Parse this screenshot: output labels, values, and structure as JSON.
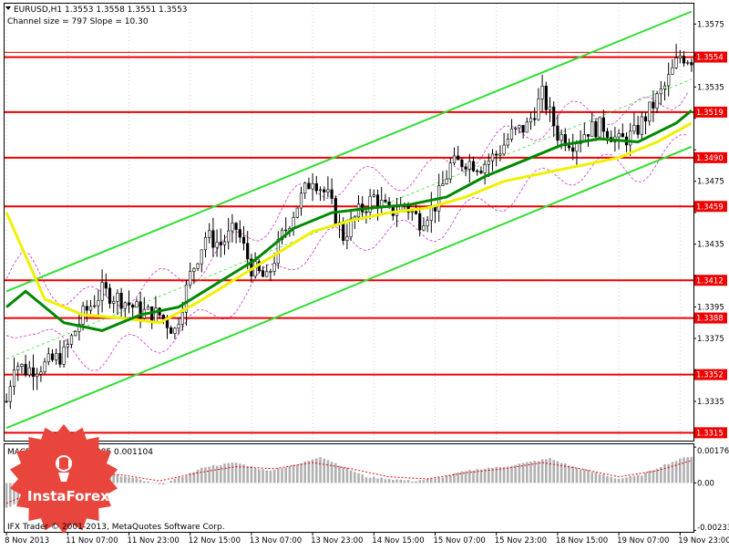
{
  "chart_data": {
    "type": "candlestick",
    "title": "EURUSD,H1  1.3553 1.3558 1.3551 1.3553",
    "subtitle": "Channel size = 797 Slope = 10.30",
    "ylim": [
      1.331,
      1.3588
    ],
    "y_ticks": [
      "1.3575",
      "1.3555",
      "1.3535",
      "1.3515",
      "1.3495",
      "1.3475",
      "1.3455",
      "1.3435",
      "1.3415",
      "1.3395",
      "1.3375",
      "1.3355",
      "1.3335"
    ],
    "y_tick_values": [
      1.3575,
      1.3555,
      1.3535,
      1.3515,
      1.3495,
      1.3475,
      1.3455,
      1.3435,
      1.3415,
      1.3395,
      1.3375,
      1.3355,
      1.3335
    ],
    "x_ticks": [
      "8 Nov 2013",
      "11 Nov 07:00",
      "11 Nov 23:00",
      "12 Nov 15:00",
      "13 Nov 07:00",
      "13 Nov 23:00",
      "14 Nov 15:00",
      "15 Nov 07:00",
      "15 Nov 23:00",
      "18 Nov 15:00",
      "19 Nov 07:00",
      "19 Nov 23:00"
    ],
    "x_tick_bars": [
      0,
      16,
      32,
      48,
      64,
      80,
      96,
      112,
      128,
      144,
      160,
      176
    ],
    "levels": [
      {
        "label": "1.3554",
        "value": 1.3554
      },
      {
        "label": "1.3519",
        "value": 1.3519
      },
      {
        "label": "1.3490",
        "value": 1.349
      },
      {
        "label": "1.3459",
        "value": 1.3459
      },
      {
        "label": "1.3412",
        "value": 1.3412
      },
      {
        "label": "1.3388",
        "value": 1.3388
      },
      {
        "label": "1.3352",
        "value": 1.3352
      },
      {
        "label": "1.3315",
        "value": 1.3315
      }
    ],
    "close_path": [
      [
        0,
        1.3335
      ],
      [
        2,
        1.336
      ],
      [
        5,
        1.3355
      ],
      [
        10,
        1.3358
      ],
      [
        15,
        1.3365
      ],
      [
        20,
        1.339
      ],
      [
        25,
        1.3405
      ],
      [
        30,
        1.34
      ],
      [
        35,
        1.3392
      ],
      [
        40,
        1.339
      ],
      [
        44,
        1.338
      ],
      [
        48,
        1.3415
      ],
      [
        52,
        1.344
      ],
      [
        56,
        1.3435
      ],
      [
        60,
        1.3445
      ],
      [
        64,
        1.342
      ],
      [
        68,
        1.3412
      ],
      [
        72,
        1.344
      ],
      [
        76,
        1.346
      ],
      [
        80,
        1.3478
      ],
      [
        84,
        1.3465
      ],
      [
        88,
        1.344
      ],
      [
        92,
        1.3455
      ],
      [
        96,
        1.3465
      ],
      [
        100,
        1.3455
      ],
      [
        104,
        1.346
      ],
      [
        108,
        1.345
      ],
      [
        112,
        1.346
      ],
      [
        116,
        1.3485
      ],
      [
        120,
        1.3488
      ],
      [
        124,
        1.3485
      ],
      [
        128,
        1.3492
      ],
      [
        132,
        1.3505
      ],
      [
        136,
        1.351
      ],
      [
        140,
        1.353
      ],
      [
        144,
        1.3505
      ],
      [
        148,
        1.35
      ],
      [
        152,
        1.3508
      ],
      [
        156,
        1.351
      ],
      [
        160,
        1.35
      ],
      [
        164,
        1.3505
      ],
      [
        168,
        1.352
      ],
      [
        172,
        1.3535
      ],
      [
        176,
        1.3555
      ],
      [
        179,
        1.3553
      ]
    ],
    "ma_green_path": [
      [
        0,
        1.3395
      ],
      [
        5,
        1.3405
      ],
      [
        15,
        1.3385
      ],
      [
        25,
        1.338
      ],
      [
        35,
        1.339
      ],
      [
        45,
        1.3395
      ],
      [
        55,
        1.341
      ],
      [
        65,
        1.3425
      ],
      [
        75,
        1.3445
      ],
      [
        85,
        1.3455
      ],
      [
        95,
        1.3458
      ],
      [
        105,
        1.346
      ],
      [
        115,
        1.3465
      ],
      [
        125,
        1.3478
      ],
      [
        135,
        1.3488
      ],
      [
        145,
        1.3498
      ],
      [
        155,
        1.3502
      ],
      [
        165,
        1.35
      ],
      [
        175,
        1.3512
      ],
      [
        179,
        1.352
      ]
    ],
    "ma_yellow_path": [
      [
        0,
        1.3455
      ],
      [
        10,
        1.34
      ],
      [
        20,
        1.339
      ],
      [
        30,
        1.3388
      ],
      [
        40,
        1.3385
      ],
      [
        50,
        1.3398
      ],
      [
        60,
        1.3413
      ],
      [
        70,
        1.3428
      ],
      [
        80,
        1.3443
      ],
      [
        90,
        1.345
      ],
      [
        100,
        1.3455
      ],
      [
        110,
        1.3458
      ],
      [
        120,
        1.3465
      ],
      [
        130,
        1.3475
      ],
      [
        140,
        1.348
      ],
      [
        150,
        1.3485
      ],
      [
        160,
        1.349
      ],
      [
        170,
        1.35
      ],
      [
        179,
        1.3512
      ]
    ],
    "channel_upper": [
      [
        0,
        1.3405
      ],
      [
        179,
        1.3583
      ]
    ],
    "channel_middle": [
      [
        0,
        1.3362
      ],
      [
        179,
        1.354
      ]
    ],
    "channel_lower": [
      [
        0,
        1.3318
      ],
      [
        179,
        1.3497
      ]
    ],
    "macd": {
      "label": "MACD(12,26,9) 0.001285 0.001104",
      "y_ticks": [
        "0.00176",
        "0.00",
        "-0.00233"
      ],
      "y_tick_values": [
        0.00176,
        0.0,
        -0.00233
      ],
      "ylim": [
        -0.0024,
        0.0019
      ],
      "hist_path": [
        [
          0,
          -0.0012
        ],
        [
          6,
          -0.0008
        ],
        [
          12,
          0.0004
        ],
        [
          20,
          0.0007
        ],
        [
          28,
          0.0004
        ],
        [
          34,
          0.0002
        ],
        [
          40,
          -0.0001
        ],
        [
          46,
          0.0003
        ],
        [
          52,
          0.0008
        ],
        [
          60,
          0.001
        ],
        [
          68,
          0.0006
        ],
        [
          76,
          0.0009
        ],
        [
          82,
          0.0013
        ],
        [
          88,
          0.0008
        ],
        [
          94,
          0.0003
        ],
        [
          100,
          0.0002
        ],
        [
          106,
          0.0001
        ],
        [
          112,
          0.0002
        ],
        [
          118,
          0.0005
        ],
        [
          124,
          0.0007
        ],
        [
          130,
          0.0008
        ],
        [
          136,
          0.001
        ],
        [
          142,
          0.0012
        ],
        [
          148,
          0.0008
        ],
        [
          154,
          0.0005
        ],
        [
          160,
          0.0002
        ],
        [
          166,
          0.0004
        ],
        [
          172,
          0.0009
        ],
        [
          178,
          0.0013
        ]
      ],
      "signal_path": [
        [
          0,
          -0.001
        ],
        [
          10,
          -0.0002
        ],
        [
          20,
          0.0005
        ],
        [
          30,
          0.0004
        ],
        [
          40,
          0.0001
        ],
        [
          50,
          0.0005
        ],
        [
          60,
          0.0008
        ],
        [
          70,
          0.0007
        ],
        [
          80,
          0.001
        ],
        [
          90,
          0.0007
        ],
        [
          100,
          0.0003
        ],
        [
          110,
          0.0002
        ],
        [
          120,
          0.0005
        ],
        [
          130,
          0.0007
        ],
        [
          140,
          0.001
        ],
        [
          150,
          0.0007
        ],
        [
          160,
          0.0003
        ],
        [
          170,
          0.0006
        ],
        [
          179,
          0.0011
        ]
      ]
    },
    "colors": {
      "candle": "#000000",
      "level_line": "#ee0000",
      "channel": "#33dd33",
      "ma_green": "#008800",
      "ma_yellow": "#f0f000",
      "bands": "#cc33cc",
      "macd_hist": "#b0b0b0",
      "macd_signal": "#ee0000",
      "grid": "#d0d0d0",
      "logo_red": "#e8463c"
    }
  },
  "branding": {
    "logo_text": "InstaForex",
    "footer": "IFX Trader  © 2001-2013, MetaQuotes Software Corp."
  }
}
